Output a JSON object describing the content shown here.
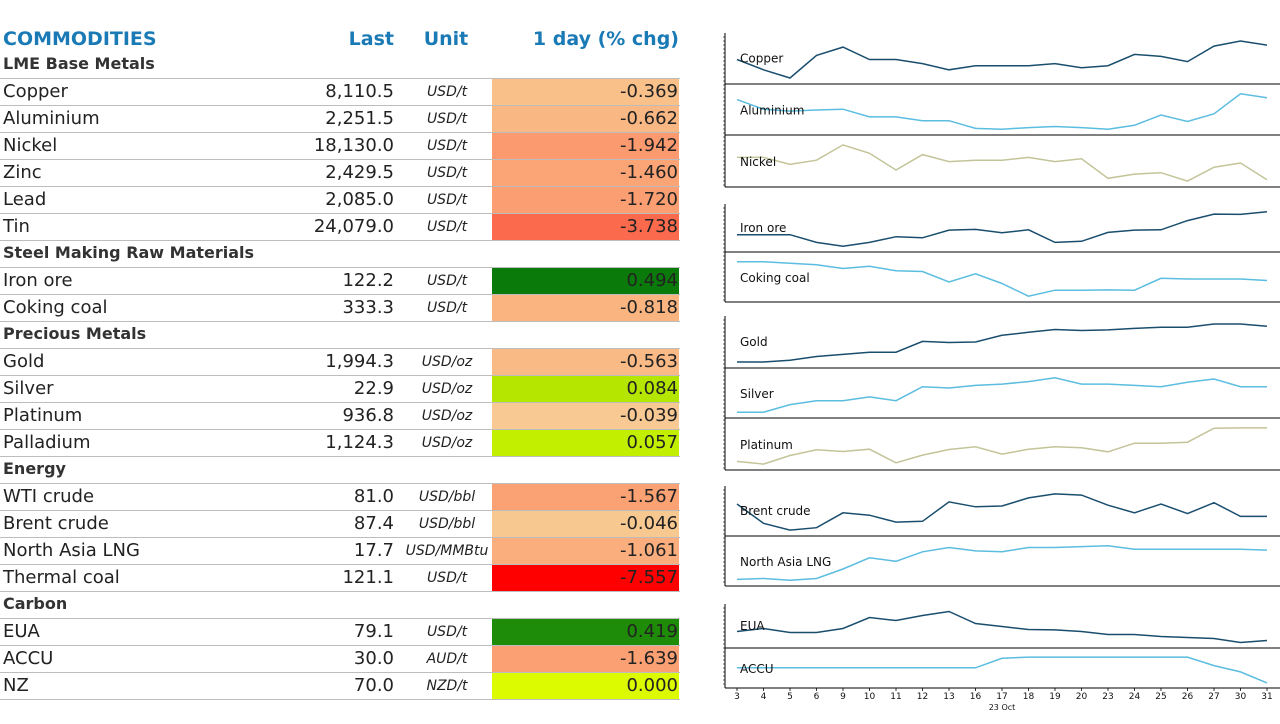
{
  "header": {
    "name": "COMMODITIES",
    "last": "Last",
    "unit": "Unit",
    "chg": "1 day (% chg)"
  },
  "rows": [
    {
      "type": "group",
      "name": "LME Base Metals"
    },
    {
      "type": "item",
      "name": "Copper",
      "last": "8,110.5",
      "unit": "USD/t",
      "chg": "-0.369",
      "color": "#f9c08a"
    },
    {
      "type": "item",
      "name": "Aluminium",
      "last": "2,251.5",
      "unit": "USD/t",
      "chg": "-0.662",
      "color": "#f9b784"
    },
    {
      "type": "item",
      "name": "Nickel",
      "last": "18,130.0",
      "unit": "USD/t",
      "chg": "-1.942",
      "color": "#fb9a6e"
    },
    {
      "type": "item",
      "name": "Zinc",
      "last": "2,429.5",
      "unit": "USD/t",
      "chg": "-1.460",
      "color": "#fba476"
    },
    {
      "type": "item",
      "name": "Lead",
      "last": "2,085.0",
      "unit": "USD/t",
      "chg": "-1.720",
      "color": "#fb9f72"
    },
    {
      "type": "item",
      "name": "Tin",
      "last": "24,079.0",
      "unit": "USD/t",
      "chg": "-3.738",
      "color": "#fc6a4d"
    },
    {
      "type": "group",
      "name": "Steel Making Raw Materials"
    },
    {
      "type": "item",
      "name": "Iron ore",
      "last": "122.2",
      "unit": "USD/t",
      "chg": "0.494",
      "color": "#0a7a0a"
    },
    {
      "type": "item",
      "name": "Coking coal",
      "last": "333.3",
      "unit": "USD/t",
      "chg": "-0.818",
      "color": "#f9b480"
    },
    {
      "type": "group",
      "name": "Precious Metals"
    },
    {
      "type": "item",
      "name": "Gold",
      "last": "1,994.3",
      "unit": "USD/oz",
      "chg": "-0.563",
      "color": "#f9ba86"
    },
    {
      "type": "item",
      "name": "Silver",
      "last": "22.9",
      "unit": "USD/oz",
      "chg": "0.084",
      "color": "#b5e600"
    },
    {
      "type": "item",
      "name": "Platinum",
      "last": "936.8",
      "unit": "USD/oz",
      "chg": "-0.039",
      "color": "#f8c992"
    },
    {
      "type": "item",
      "name": "Palladium",
      "last": "1,124.3",
      "unit": "USD/oz",
      "chg": "0.057",
      "color": "#c2ee00"
    },
    {
      "type": "group",
      "name": "Energy"
    },
    {
      "type": "item",
      "name": "WTI crude",
      "last": "81.0",
      "unit": "USD/bbl",
      "chg": "-1.567",
      "color": "#fba274"
    },
    {
      "type": "item",
      "name": "Brent crude",
      "last": "87.4",
      "unit": "USD/bbl",
      "chg": "-0.046",
      "color": "#f8c891"
    },
    {
      "type": "item",
      "name": "North Asia LNG",
      "last": "17.7",
      "unit": "USD/MMBtu",
      "chg": "-1.061",
      "color": "#faae7e"
    },
    {
      "type": "item",
      "name": "Thermal coal",
      "last": "121.1",
      "unit": "USD/t",
      "chg": "-7.557",
      "color": "#fe0000"
    },
    {
      "type": "group",
      "name": "Carbon"
    },
    {
      "type": "item",
      "name": "EUA",
      "last": "79.1",
      "unit": "USD/t",
      "chg": "0.419",
      "color": "#1e8c08"
    },
    {
      "type": "item",
      "name": "ACCU",
      "last": "30.0",
      "unit": "AUD/t",
      "chg": "-1.639",
      "color": "#fba073"
    },
    {
      "type": "item",
      "name": "NZ",
      "last": "70.0",
      "unit": "NZD/t",
      "chg": "0.000",
      "color": "#dcfa00"
    }
  ],
  "chart_data": {
    "type": "line",
    "x": [
      "3",
      "4",
      "5",
      "6",
      "9",
      "10",
      "11",
      "12",
      "13",
      "16",
      "17",
      "18",
      "19",
      "20",
      "23",
      "24",
      "25",
      "26",
      "27",
      "30",
      "31"
    ],
    "x_sub_label": "23 Oct",
    "series_colors": {
      "dark": "#1a4e6e",
      "light": "#5bbde0",
      "olive": "#c4c49a"
    },
    "panels": [
      {
        "name": "Copper",
        "color": "dark",
        "values": [
          8080,
          8030,
          7990,
          8100,
          8140,
          8080,
          8080,
          8060,
          8030,
          8050,
          8050,
          8050,
          8060,
          8040,
          8050,
          8105,
          8095,
          8070,
          8145,
          8170,
          8150
        ]
      },
      {
        "name": "Aluminium",
        "color": "light",
        "values": [
          2245,
          2220,
          2215,
          2218,
          2220,
          2200,
          2200,
          2190,
          2190,
          2170,
          2168,
          2172,
          2175,
          2172,
          2168,
          2178,
          2205,
          2188,
          2208,
          2260,
          2250
        ]
      },
      {
        "name": "Nickel",
        "color": "olive",
        "values": [
          18750,
          18750,
          18500,
          18650,
          19200,
          18900,
          18300,
          18850,
          18600,
          18650,
          18650,
          18750,
          18600,
          18700,
          18000,
          18150,
          18200,
          17900,
          18400,
          18550,
          17950
        ]
      },
      {
        "name": "Iron ore",
        "color": "dark",
        "values": [
          115,
          115,
          115,
          113,
          112,
          113,
          114.5,
          114.2,
          116.2,
          116.4,
          115.5,
          116.3,
          113,
          113.3,
          115.6,
          116.2,
          116.3,
          118.7,
          120.4,
          120.3,
          121
        ]
      },
      {
        "name": "Coking coal",
        "color": "light",
        "values": [
          372,
          372,
          370,
          368,
          363,
          366,
          360,
          359,
          345,
          356,
          343,
          326,
          334,
          334,
          334.5,
          334,
          350,
          349,
          349,
          349,
          347
        ]
      },
      {
        "name": "Gold",
        "color": "dark",
        "values": [
          1830,
          1830,
          1838,
          1855,
          1865,
          1875,
          1875,
          1925,
          1920,
          1922,
          1953,
          1967,
          1980,
          1975,
          1978,
          1985,
          1990,
          1990,
          2005,
          2005,
          1995
        ]
      },
      {
        "name": "Silver",
        "color": "light",
        "values": [
          21.2,
          21.2,
          21.8,
          22.1,
          22.1,
          22.4,
          22.1,
          23.2,
          23.1,
          23.3,
          23.4,
          23.6,
          23.9,
          23.4,
          23.4,
          23.3,
          23.2,
          23.55,
          23.8,
          23.2,
          23.2
        ]
      },
      {
        "name": "Platinum",
        "color": "olive",
        "values": [
          870,
          862,
          888,
          905,
          900,
          907,
          866,
          889,
          906,
          914,
          892,
          907,
          914,
          911,
          899,
          925,
          925,
          928,
          970,
          971,
          971
        ]
      },
      {
        "name": "Brent crude",
        "color": "dark",
        "values": [
          90.5,
          85.7,
          84.0,
          84.6,
          88.3,
          87.7,
          86.0,
          86.2,
          91.0,
          89.8,
          90.0,
          92.0,
          93.0,
          92.7,
          90.2,
          88.3,
          90.5,
          88.1,
          90.8,
          87.4,
          87.4
        ]
      },
      {
        "name": "North Asia LNG",
        "color": "light",
        "values": [
          13.1,
          13.2,
          13.0,
          13.2,
          14.3,
          15.6,
          15.2,
          16.3,
          16.8,
          16.4,
          16.3,
          16.8,
          16.8,
          16.9,
          17.0,
          16.6,
          16.6,
          16.6,
          16.6,
          16.6,
          16.5
        ]
      },
      {
        "name": "EUA",
        "color": "dark",
        "values": [
          83.0,
          84.5,
          82.5,
          82.5,
          84.5,
          90.0,
          88.5,
          91.0,
          93.0,
          87.0,
          85.5,
          84.0,
          83.8,
          83.0,
          81.5,
          81.5,
          80.5,
          80.0,
          79.5,
          77.5,
          78.5
        ]
      },
      {
        "name": "ACCU",
        "color": "light",
        "values": [
          34.8,
          34.8,
          34.8,
          34.8,
          34.8,
          34.8,
          34.8,
          34.8,
          34.8,
          34.8,
          37.8,
          38.2,
          38.2,
          38.2,
          38.2,
          38.2,
          38.2,
          38.2,
          35.5,
          33.5,
          30.0
        ]
      }
    ]
  }
}
